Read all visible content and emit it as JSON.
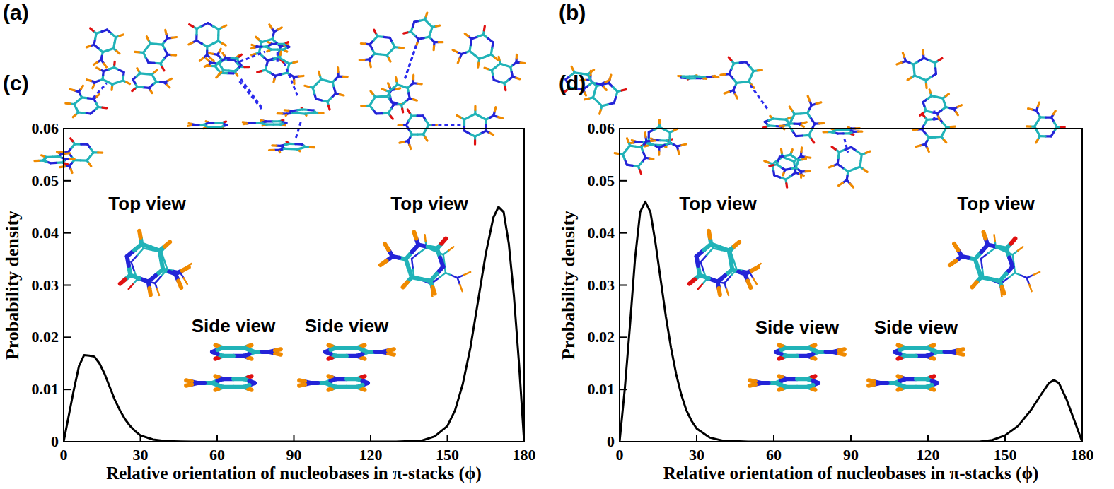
{
  "figure_labels": [
    "(a)",
    "(b)"
  ],
  "chart_data": [
    {
      "type": "line",
      "panel_label": "(c)",
      "x": [
        0,
        2,
        4,
        6,
        8,
        10,
        12,
        14,
        16,
        18,
        20,
        22,
        24,
        26,
        28,
        30,
        35,
        40,
        50,
        60,
        90,
        120,
        130,
        140,
        145,
        150,
        153,
        156,
        159,
        162,
        165,
        168,
        170,
        172,
        174,
        176,
        178,
        180
      ],
      "values": [
        0,
        0.005,
        0.01,
        0.0145,
        0.0166,
        0.0165,
        0.0163,
        0.015,
        0.013,
        0.0105,
        0.008,
        0.006,
        0.0043,
        0.003,
        0.002,
        0.0012,
        0.0004,
        0.0001,
        0,
        0,
        0,
        0,
        0,
        0.0002,
        0.001,
        0.003,
        0.006,
        0.011,
        0.018,
        0.027,
        0.036,
        0.043,
        0.045,
        0.044,
        0.038,
        0.028,
        0.015,
        0
      ],
      "color": "#000000",
      "xlim": [
        0,
        180
      ],
      "ylim": [
        0,
        0.06
      ],
      "xticks": [
        0,
        30,
        60,
        90,
        120,
        150,
        180
      ],
      "yticks": [
        0,
        0.01,
        0.02,
        0.03,
        0.04,
        0.05,
        0.06
      ],
      "x_label": "Relative orientation of nucleobases in π-stacks (ϕ)",
      "y_label": "Probability density",
      "annotations": [
        "Top view",
        "Side view",
        "Side view",
        "Top view"
      ]
    },
    {
      "type": "line",
      "panel_label": "(d)",
      "x": [
        0,
        2,
        4,
        6,
        8,
        10,
        12,
        14,
        16,
        18,
        20,
        22,
        24,
        26,
        28,
        30,
        35,
        40,
        50,
        90,
        140,
        145,
        150,
        155,
        160,
        164,
        167,
        169,
        171,
        174,
        177,
        180
      ],
      "values": [
        0,
        0.01,
        0.022,
        0.035,
        0.044,
        0.046,
        0.044,
        0.038,
        0.031,
        0.024,
        0.018,
        0.013,
        0.009,
        0.006,
        0.004,
        0.0025,
        0.0008,
        0.0002,
        0,
        0,
        0,
        0.0003,
        0.0012,
        0.003,
        0.006,
        0.009,
        0.0112,
        0.0118,
        0.0112,
        0.008,
        0.004,
        0
      ],
      "color": "#000000",
      "xlim": [
        0,
        180
      ],
      "ylim": [
        0,
        0.06
      ],
      "xticks": [
        0,
        30,
        60,
        90,
        120,
        150,
        180
      ],
      "yticks": [
        0,
        0.01,
        0.02,
        0.03,
        0.04,
        0.05,
        0.06
      ],
      "x_label": "Relative orientation of nucleobases in π-stacks (ϕ)",
      "y_label": "Probability density",
      "annotations": [
        "Top view",
        "Side view",
        "Side view",
        "Top view"
      ]
    }
  ]
}
